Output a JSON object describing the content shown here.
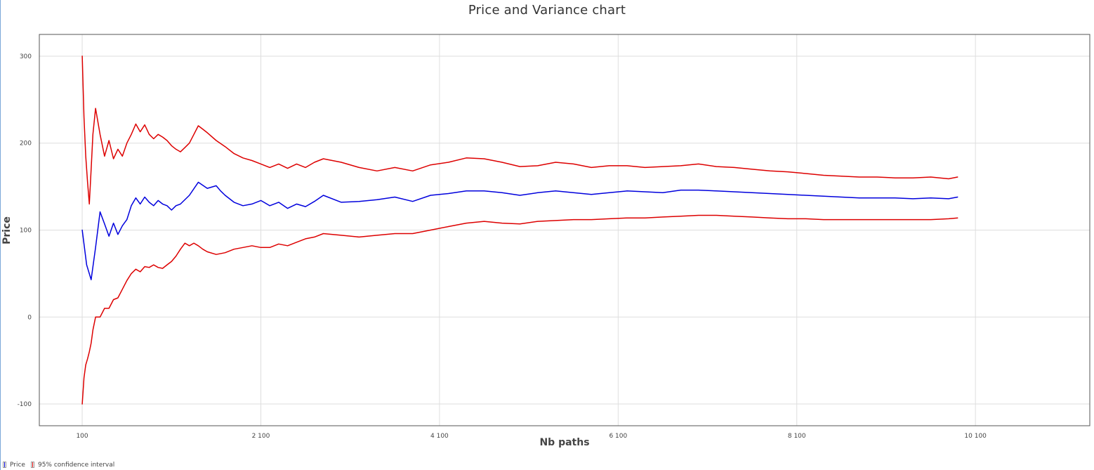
{
  "chart_data": {
    "type": "line",
    "title": "Price and Variance chart",
    "xlabel": "Nb paths",
    "ylabel": "Price",
    "xlim": [
      -380,
      11380
    ],
    "ylim": [
      -125,
      325
    ],
    "xticks": [
      100,
      2100,
      4100,
      6100,
      8100,
      10100
    ],
    "xtick_labels": [
      "100",
      "2 100",
      "4 100",
      "6 100",
      "8 100",
      "10 100"
    ],
    "yticks": [
      -100,
      0,
      100,
      200,
      300
    ],
    "ytick_labels": [
      "-100",
      "0",
      "100",
      "200",
      "300"
    ],
    "grid": true,
    "legend_position": "bottom-left",
    "series": [
      {
        "name": "Price",
        "color": "#0000dd",
        "x": [
          100,
          150,
          200,
          250,
          300,
          350,
          400,
          450,
          500,
          550,
          600,
          650,
          700,
          750,
          800,
          850,
          900,
          950,
          1000,
          1050,
          1100,
          1150,
          1200,
          1300,
          1400,
          1500,
          1600,
          1650,
          1700,
          1800,
          1900,
          2000,
          2100,
          2200,
          2300,
          2400,
          2500,
          2600,
          2700,
          2800,
          3000,
          3200,
          3400,
          3600,
          3800,
          4000,
          4200,
          4400,
          4600,
          4800,
          5000,
          5200,
          5400,
          5600,
          5800,
          6000,
          6200,
          6400,
          6600,
          6800,
          7000,
          7200,
          7400,
          7600,
          7800,
          8000,
          8200,
          8400,
          8600,
          8800,
          9000,
          9200,
          9400,
          9600,
          9800,
          9900
        ],
        "values": [
          100,
          60,
          43,
          80,
          121,
          107,
          93,
          108,
          95,
          105,
          112,
          128,
          137,
          130,
          138,
          132,
          128,
          134,
          130,
          128,
          123,
          128,
          130,
          140,
          155,
          148,
          151,
          145,
          140,
          132,
          128,
          130,
          134,
          128,
          132,
          125,
          130,
          127,
          133,
          140,
          132,
          133,
          135,
          138,
          133,
          140,
          142,
          145,
          145,
          143,
          140,
          143,
          145,
          143,
          141,
          143,
          145,
          144,
          143,
          146,
          146,
          145,
          144,
          143,
          142,
          141,
          140,
          139,
          138,
          137,
          137,
          137,
          136,
          137,
          136,
          138
        ]
      },
      {
        "name": "95% confidence interval",
        "color": "#dd0000",
        "x": [
          100,
          120,
          140,
          160,
          180,
          200,
          220,
          250,
          300,
          350,
          400,
          450,
          500,
          550,
          600,
          650,
          700,
          750,
          800,
          850,
          900,
          950,
          1000,
          1050,
          1100,
          1150,
          1200,
          1250,
          1300,
          1350,
          1400,
          1450,
          1500,
          1600,
          1700,
          1800,
          1900,
          2000,
          2100,
          2200,
          2300,
          2400,
          2500,
          2600,
          2700,
          2800,
          3000,
          3200,
          3400,
          3600,
          3800,
          4000,
          4200,
          4400,
          4600,
          4800,
          5000,
          5200,
          5400,
          5600,
          5800,
          6000,
          6200,
          6400,
          6600,
          6800,
          7000,
          7200,
          7400,
          7600,
          7800,
          8000,
          8200,
          8400,
          8600,
          8800,
          9000,
          9200,
          9400,
          9600,
          9800,
          9900
        ],
        "values": [
          300,
          230,
          185,
          155,
          130,
          170,
          210,
          240,
          210,
          185,
          203,
          182,
          193,
          185,
          200,
          210,
          222,
          213,
          221,
          210,
          205,
          210,
          207,
          203,
          197,
          193,
          190,
          195,
          200,
          210,
          220,
          216,
          212,
          203,
          196,
          188,
          183,
          180,
          176,
          172,
          176,
          171,
          176,
          172,
          178,
          182,
          178,
          172,
          168,
          172,
          168,
          175,
          178,
          183,
          182,
          178,
          173,
          174,
          178,
          176,
          172,
          174,
          174,
          172,
          173,
          174,
          176,
          173,
          172,
          170,
          168,
          167,
          165,
          163,
          162,
          161,
          161,
          160,
          160,
          161,
          159,
          161
        ]
      },
      {
        "name": "",
        "color": "#dd0000",
        "x": [
          100,
          120,
          140,
          160,
          180,
          200,
          220,
          250,
          300,
          350,
          400,
          450,
          500,
          550,
          600,
          650,
          700,
          750,
          800,
          850,
          900,
          950,
          1000,
          1050,
          1100,
          1150,
          1200,
          1250,
          1300,
          1350,
          1400,
          1450,
          1500,
          1600,
          1700,
          1800,
          1900,
          2000,
          2100,
          2200,
          2300,
          2400,
          2500,
          2600,
          2700,
          2800,
          3000,
          3200,
          3400,
          3600,
          3800,
          4000,
          4200,
          4400,
          4600,
          4800,
          5000,
          5200,
          5400,
          5600,
          5800,
          6000,
          6200,
          6400,
          6600,
          6800,
          7000,
          7200,
          7400,
          7600,
          7800,
          8000,
          8200,
          8400,
          8600,
          8800,
          9000,
          9200,
          9400,
          9600,
          9800,
          9900
        ],
        "values": [
          -100,
          -70,
          -55,
          -48,
          -40,
          -30,
          -15,
          0,
          0,
          10,
          10,
          20,
          22,
          32,
          42,
          50,
          55,
          52,
          58,
          57,
          60,
          57,
          56,
          60,
          64,
          70,
          78,
          85,
          82,
          85,
          82,
          78,
          75,
          72,
          74,
          78,
          80,
          82,
          80,
          80,
          84,
          82,
          86,
          90,
          92,
          96,
          94,
          92,
          94,
          96,
          96,
          100,
          104,
          108,
          110,
          108,
          107,
          110,
          111,
          112,
          112,
          113,
          114,
          114,
          115,
          116,
          117,
          117,
          116,
          115,
          114,
          113,
          113,
          112,
          112,
          112,
          112,
          112,
          112,
          112,
          113,
          114
        ]
      }
    ]
  }
}
